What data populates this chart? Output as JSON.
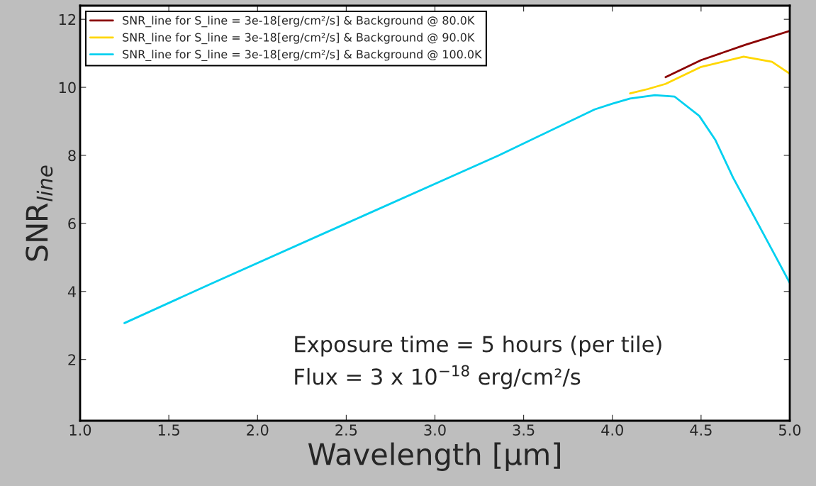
{
  "chart_data": {
    "type": "line",
    "xlabel": "Wavelength [μm]",
    "ylabel": "SNR$_{line}$",
    "xlim": [
      1.0,
      5.0
    ],
    "ylim": [
      0.2,
      12.4
    ],
    "xticks": [
      {
        "value": 1.0,
        "label": "1.0"
      },
      {
        "value": 1.5,
        "label": "1.5"
      },
      {
        "value": 2.0,
        "label": "2.0"
      },
      {
        "value": 2.5,
        "label": "2.5"
      },
      {
        "value": 3.0,
        "label": "3.0"
      },
      {
        "value": 3.5,
        "label": "3.5"
      },
      {
        "value": 4.0,
        "label": "4.0"
      },
      {
        "value": 4.5,
        "label": "4.5"
      },
      {
        "value": 5.0,
        "label": "5.0"
      }
    ],
    "yticks": [
      2,
      4,
      6,
      8,
      10,
      12
    ],
    "grid": false,
    "legend": "top left",
    "marker": "none",
    "line_style": "solid",
    "series": [
      {
        "name": "SNR_line for S_line = 3e-18[erg/cm²/s] & Background @ 80.0K",
        "color": "#8b0000",
        "x": [
          4.3,
          4.5,
          4.75,
          5.0
        ],
        "values": [
          10.3,
          10.8,
          11.25,
          11.66
        ]
      },
      {
        "name": "SNR_line for S_line = 3e-18[erg/cm²/s] & Background @ 90.0K",
        "color": "#ffd700",
        "x": [
          4.1,
          4.2,
          4.3,
          4.5,
          4.74,
          4.9,
          5.0
        ],
        "values": [
          9.82,
          9.95,
          10.1,
          10.6,
          10.9,
          10.75,
          10.4
        ]
      },
      {
        "name": "SNR_line for S_line = 3e-18[erg/cm²/s] & Background @ 100.0K",
        "color": "#00d0f0",
        "x": [
          1.25,
          1.74,
          2.5,
          3.36,
          3.9,
          4.0,
          4.1,
          4.24,
          4.35,
          4.49,
          4.58,
          4.68,
          4.82,
          4.95,
          5.0
        ],
        "values": [
          3.07,
          4.23,
          6.0,
          8.0,
          9.35,
          9.52,
          9.67,
          9.77,
          9.73,
          9.16,
          8.46,
          7.35,
          6.0,
          4.74,
          4.25
        ]
      }
    ],
    "annotations": [
      "Exposure time = 5 hours (per tile)",
      "Flux = 3 x 10$^{−18}$ erg/cm²/s"
    ]
  }
}
